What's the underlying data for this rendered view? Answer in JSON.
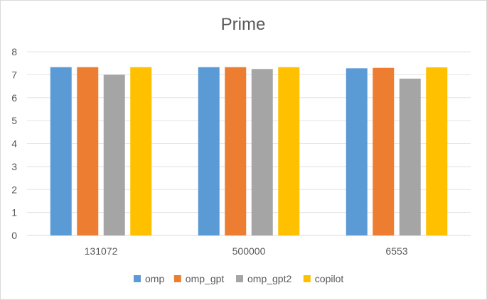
{
  "chart_data": {
    "type": "bar",
    "title": "Prime",
    "xlabel": "",
    "ylabel": "",
    "categories": [
      "131072",
      "500000",
      "6553"
    ],
    "series": [
      {
        "name": "omp",
        "color": "#5b9bd5",
        "values": [
          7.33,
          7.33,
          7.28
        ]
      },
      {
        "name": "omp_gpt",
        "color": "#ed7d31",
        "values": [
          7.33,
          7.33,
          7.3
        ]
      },
      {
        "name": "omp_gpt2",
        "color": "#a5a5a5",
        "values": [
          7.0,
          7.25,
          6.83
        ]
      },
      {
        "name": "copilot",
        "color": "#ffc000",
        "values": [
          7.33,
          7.33,
          7.32
        ]
      }
    ],
    "ylim": [
      0,
      8
    ],
    "yticks": [
      "0",
      "1",
      "2",
      "3",
      "4",
      "5",
      "6",
      "7",
      "8"
    ],
    "grid": true,
    "legend_position": "bottom"
  }
}
